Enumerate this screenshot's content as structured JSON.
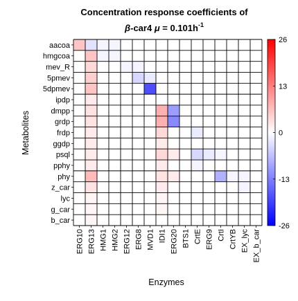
{
  "chart_data": {
    "type": "heatmap",
    "title_line1": "Concentration response coefficients of",
    "title_line2": {
      "beta": "β",
      "prefix": "-car4 ",
      "mu": "μ",
      "equals": " = 0.101h",
      "sup": "-1"
    },
    "xlabel": "Enzymes",
    "ylabel": "Metabolites",
    "x_categories": [
      "ERG10",
      "ERG13",
      "HMG1",
      "HMG2",
      "ERG12",
      "ERG8",
      "MVD1",
      "IDI1",
      "ERG20",
      "BTS1",
      "CrtE",
      "ERG9",
      "CrtI",
      "CrtYB",
      "EX_lyc",
      "EX_b_car"
    ],
    "y_categories": [
      "aacoa",
      "hmgcoa",
      "mev_R",
      "5pmev",
      "5dpmev",
      "ipdp",
      "dmpp",
      "grdp",
      "frdp",
      "ggdp",
      "psql",
      "pphy",
      "phy",
      "z_car",
      "lyc",
      "g_car",
      "b_car"
    ],
    "colorbar": {
      "min": -26,
      "max": 26,
      "ticks": [
        26,
        13,
        0,
        -13,
        -26
      ],
      "low_color": "#0000ff",
      "mid_color": "#ffffff",
      "high_color": "#ff0000"
    },
    "grid": true,
    "values": [
      [
        6,
        -3,
        -1,
        -1,
        0,
        0,
        0,
        0,
        0,
        0,
        0,
        0,
        0,
        0,
        0,
        0
      ],
      [
        0,
        6,
        -1,
        -1,
        0,
        0,
        0,
        0,
        0,
        0,
        0,
        0,
        0,
        0,
        0,
        0
      ],
      [
        0,
        4,
        0,
        0,
        -1,
        -1,
        0,
        0,
        0,
        0,
        0,
        0,
        0,
        0,
        0,
        0
      ],
      [
        0,
        5,
        0,
        0,
        0,
        -4,
        -2,
        0,
        0,
        0,
        0,
        0,
        0,
        0,
        0,
        0
      ],
      [
        0,
        6,
        0,
        0,
        0,
        0,
        -18,
        0,
        0,
        0,
        0,
        0,
        0,
        0,
        0,
        0
      ],
      [
        0,
        2,
        0,
        0,
        0,
        0,
        0,
        0,
        0,
        0,
        0,
        0,
        0,
        0,
        0,
        0
      ],
      [
        0,
        3,
        0,
        0,
        0,
        0,
        0,
        8,
        -10,
        0,
        0,
        0,
        0,
        0,
        0,
        0
      ],
      [
        0,
        3,
        0,
        0,
        0,
        0,
        0,
        8,
        -12,
        0,
        0,
        0,
        0,
        0,
        0,
        0
      ],
      [
        0,
        2,
        0,
        0,
        0,
        0,
        0,
        4,
        0,
        0,
        -2,
        0,
        0,
        0,
        0,
        0
      ],
      [
        0,
        2,
        0,
        0,
        0,
        0,
        0,
        2,
        0,
        0,
        0,
        0,
        0,
        0,
        0,
        0
      ],
      [
        0,
        2,
        0,
        0,
        0,
        0,
        0,
        4,
        2,
        0,
        -4,
        -2,
        -1,
        0,
        0,
        0
      ],
      [
        0,
        2,
        0,
        0,
        0,
        0,
        0,
        2,
        0,
        0,
        -1,
        0,
        0,
        0,
        0,
        0
      ],
      [
        0,
        7,
        0,
        0,
        0,
        0,
        0,
        3,
        2,
        0,
        0,
        0,
        -8,
        -1,
        -1,
        0
      ],
      [
        0,
        3,
        0,
        0,
        0,
        0,
        0,
        2,
        0,
        0,
        0,
        0,
        0,
        0,
        -1,
        0
      ],
      [
        0,
        1,
        0,
        0,
        0,
        0,
        0,
        1,
        0,
        0,
        0,
        0,
        0,
        0,
        0,
        0
      ],
      [
        0,
        1,
        0,
        0,
        0,
        0,
        0,
        1,
        0,
        0,
        0,
        0,
        0,
        0,
        0,
        0
      ],
      [
        0,
        1,
        0,
        0,
        0,
        0,
        0,
        0,
        0,
        0,
        0,
        0,
        0,
        0,
        0,
        0
      ]
    ]
  }
}
